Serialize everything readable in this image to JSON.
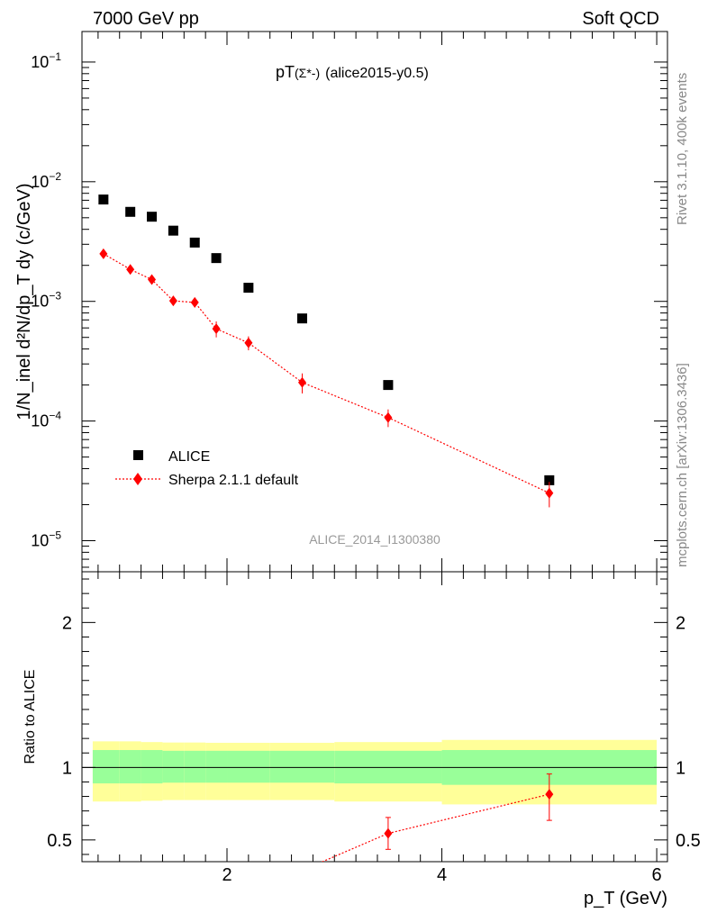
{
  "header": {
    "left": "7000 GeV pp",
    "right": "Soft QCD"
  },
  "plot": {
    "title_prefix": "pT",
    "title_particle": "(Σ*-)",
    "title_suffix": "(alice2015-y0.5)",
    "ref_label": "ALICE_2014_I1300380",
    "ylabel_main": "1/N_inel d²N/dp_T dy (c/GeV)",
    "ylabel_ratio": "Ratio to ALICE",
    "xlabel": "p_T (GeV)",
    "side_rivet": "Rivet 3.1.10,  400k events",
    "side_mcplots": "mcplots.cern.ch [arXiv:1306.3436]"
  },
  "legend": {
    "data_label": "ALICE",
    "mc_label": "Sherpa 2.1.1 default"
  },
  "colors": {
    "data": "#000000",
    "mc": "#ff0000",
    "band_inner": "#99ff99",
    "band_outer": "#ffff99"
  },
  "chart_data": [
    {
      "type": "scatter",
      "panel": "main",
      "title": "pT(Σ*-) (alice2015-y0.5)",
      "xlabel": "p_T (GeV)",
      "ylabel": "1/N_inel d²N/dp_T dy (c/GeV)",
      "yscale": "log",
      "xlim": [
        0.65,
        6.1
      ],
      "ylim": [
        5.5e-06,
        0.18
      ],
      "ytick_exponents": [
        -5,
        -4,
        -3,
        -2,
        -1
      ],
      "series": [
        {
          "name": "ALICE",
          "marker": "square",
          "x": [
            0.85,
            1.1,
            1.3,
            1.5,
            1.7,
            1.9,
            2.2,
            2.7,
            3.5,
            5.0
          ],
          "y": [
            0.0071,
            0.0056,
            0.0051,
            0.0039,
            0.0031,
            0.0023,
            0.0013,
            0.00072,
            0.0002,
            3.2e-05
          ]
        },
        {
          "name": "Sherpa 2.1.1 default",
          "marker": "diamond",
          "x": [
            0.85,
            1.1,
            1.3,
            1.5,
            1.7,
            1.9,
            2.2,
            2.7,
            3.5,
            5.0
          ],
          "y": [
            0.0025,
            0.00185,
            0.00152,
            0.00101,
            0.00098,
            0.00059,
            0.00045,
            0.00021,
            0.000107,
            2.5e-05
          ],
          "yerr": [
            8e-05,
            8e-05,
            7e-05,
            9e-05,
            9e-05,
            9e-05,
            6e-05,
            4e-05,
            1.8e-05,
            6e-06
          ]
        }
      ]
    },
    {
      "type": "scatter",
      "panel": "ratio",
      "ylabel": "Ratio to ALICE",
      "xlabel": "p_T (GeV)",
      "xlim": [
        0.65,
        6.1
      ],
      "ylim": [
        0.35,
        2.35
      ],
      "xticks": [
        2,
        4,
        6
      ],
      "yticks": [
        0.5,
        1,
        2
      ],
      "band_edges": [
        0.75,
        1.0,
        1.2,
        1.4,
        1.6,
        1.8,
        2.0,
        2.4,
        3.0,
        4.0,
        6.0
      ],
      "band_inner_low": [
        0.89,
        0.89,
        0.89,
        0.895,
        0.895,
        0.895,
        0.895,
        0.895,
        0.89,
        0.88
      ],
      "band_inner_high": [
        1.12,
        1.12,
        1.12,
        1.115,
        1.115,
        1.115,
        1.115,
        1.115,
        1.115,
        1.12
      ],
      "band_outer_low": [
        0.765,
        0.765,
        0.77,
        0.775,
        0.775,
        0.775,
        0.775,
        0.775,
        0.765,
        0.745
      ],
      "band_outer_high": [
        1.18,
        1.18,
        1.175,
        1.172,
        1.172,
        1.17,
        1.17,
        1.17,
        1.175,
        1.19
      ],
      "series": [
        {
          "name": "Sherpa 2.1.1 default / ALICE",
          "x": [
            3.5,
            5.0
          ],
          "y": [
            0.545,
            0.815
          ],
          "yerr_low": [
            0.11,
            0.18
          ],
          "yerr_high": [
            0.11,
            0.14
          ],
          "offscale_from": {
            "x": 2.7,
            "y": 0.29
          }
        }
      ]
    }
  ]
}
